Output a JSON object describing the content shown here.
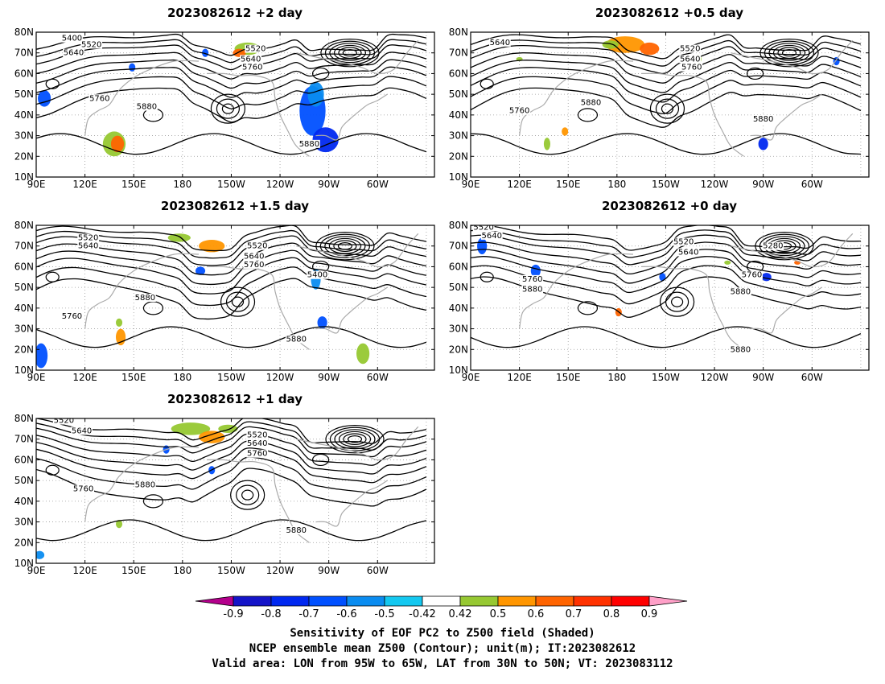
{
  "lon_ticks": [
    "90E",
    "120E",
    "150E",
    "180",
    "150W",
    "120W",
    "90W",
    "60W"
  ],
  "lat_ticks": [
    "10N",
    "20N",
    "30N",
    "40N",
    "50N",
    "60N",
    "70N",
    "80N"
  ],
  "panels": [
    {
      "id": "p2",
      "title": "2023082612 +2 day",
      "contour_labels": [
        {
          "text": "5400",
          "lon": 112,
          "lat": 77
        },
        {
          "text": "5520",
          "lon": 124,
          "lat": 74
        },
        {
          "text": "5640",
          "lon": 113,
          "lat": 70
        },
        {
          "text": "5520",
          "lon": 225,
          "lat": 72
        },
        {
          "text": "5640",
          "lon": 222,
          "lat": 67
        },
        {
          "text": "5760",
          "lon": 223,
          "lat": 63
        },
        {
          "text": "5760",
          "lon": 129,
          "lat": 48
        },
        {
          "text": "5880",
          "lon": 158,
          "lat": 44
        },
        {
          "text": "5880",
          "lon": 258,
          "lat": 26
        }
      ],
      "shading": [
        {
          "lon": 95,
          "lat": 48,
          "rx": 4,
          "ry": 4,
          "level": "-0.6"
        },
        {
          "lon": 138,
          "lat": 26,
          "rx": 7,
          "ry": 6,
          "level": "0.5"
        },
        {
          "lon": 140,
          "lat": 26,
          "rx": 4,
          "ry": 4,
          "level": "0.7"
        },
        {
          "lon": 260,
          "lat": 42,
          "rx": 8,
          "ry": 12,
          "level": "-0.6"
        },
        {
          "lon": 268,
          "lat": 28,
          "rx": 8,
          "ry": 6,
          "level": "-0.7"
        },
        {
          "lon": 262,
          "lat": 50,
          "rx": 5,
          "ry": 6,
          "level": "-0.5"
        },
        {
          "lon": 220,
          "lat": 72,
          "rx": 8,
          "ry": 3,
          "level": "0.5"
        },
        {
          "lon": 215,
          "lat": 70,
          "rx": 4,
          "ry": 2,
          "level": "0.7"
        },
        {
          "lon": 194,
          "lat": 70,
          "rx": 2,
          "ry": 2,
          "level": "-0.6"
        },
        {
          "lon": 149,
          "lat": 63,
          "rx": 2,
          "ry": 2,
          "level": "-0.6"
        }
      ]
    },
    {
      "id": "p05",
      "title": "2023082612 +0.5 day",
      "contour_labels": [
        {
          "text": "5640",
          "lon": 108,
          "lat": 75
        },
        {
          "text": "5520",
          "lon": 225,
          "lat": 72
        },
        {
          "text": "5640",
          "lon": 225,
          "lat": 67
        },
        {
          "text": "5760",
          "lon": 226,
          "lat": 63
        },
        {
          "text": "5760",
          "lon": 120,
          "lat": 42
        },
        {
          "text": "5880",
          "lon": 164,
          "lat": 46
        },
        {
          "text": "5880",
          "lon": 270,
          "lat": 38
        }
      ],
      "shading": [
        {
          "lon": 185,
          "lat": 74,
          "rx": 12,
          "ry": 4,
          "level": "0.6"
        },
        {
          "lon": 200,
          "lat": 72,
          "rx": 6,
          "ry": 3,
          "level": "0.7"
        },
        {
          "lon": 176,
          "lat": 74,
          "rx": 5,
          "ry": 2,
          "level": "0.5"
        },
        {
          "lon": 137,
          "lat": 26,
          "rx": 2,
          "ry": 3,
          "level": "0.5"
        },
        {
          "lon": 148,
          "lat": 32,
          "rx": 2,
          "ry": 2,
          "level": "0.6"
        },
        {
          "lon": 270,
          "lat": 26,
          "rx": 3,
          "ry": 3,
          "level": "-0.7"
        },
        {
          "lon": 315,
          "lat": 66,
          "rx": 2,
          "ry": 2,
          "level": "-0.6"
        },
        {
          "lon": 230,
          "lat": 67,
          "rx": 2,
          "ry": 2,
          "level": "0.5"
        },
        {
          "lon": 120,
          "lat": 67,
          "rx": 2,
          "ry": 1,
          "level": "0.5"
        }
      ]
    },
    {
      "id": "p15",
      "title": "2023082612 +1.5 day",
      "contour_labels": [
        {
          "text": "5520",
          "lon": 122,
          "lat": 74
        },
        {
          "text": "5640",
          "lon": 122,
          "lat": 70
        },
        {
          "text": "5520",
          "lon": 226,
          "lat": 70
        },
        {
          "text": "5640",
          "lon": 224,
          "lat": 65
        },
        {
          "text": "5760",
          "lon": 224,
          "lat": 61
        },
        {
          "text": "5400",
          "lon": 263,
          "lat": 56
        },
        {
          "text": "5880",
          "lon": 157,
          "lat": 45
        },
        {
          "text": "5760",
          "lon": 112,
          "lat": 36
        },
        {
          "text": "5880",
          "lon": 250,
          "lat": 25
        }
      ],
      "shading": [
        {
          "lon": 93,
          "lat": 17,
          "rx": 4,
          "ry": 6,
          "level": "-0.6"
        },
        {
          "lon": 178,
          "lat": 74,
          "rx": 7,
          "ry": 2,
          "level": "0.5"
        },
        {
          "lon": 198,
          "lat": 70,
          "rx": 8,
          "ry": 3,
          "level": "0.6"
        },
        {
          "lon": 191,
          "lat": 58,
          "rx": 3,
          "ry": 2,
          "level": "-0.6"
        },
        {
          "lon": 262,
          "lat": 54,
          "rx": 3,
          "ry": 5,
          "level": "-0.5"
        },
        {
          "lon": 142,
          "lat": 26,
          "rx": 3,
          "ry": 4,
          "level": "0.6"
        },
        {
          "lon": 141,
          "lat": 33,
          "rx": 2,
          "ry": 2,
          "level": "0.5"
        },
        {
          "lon": 291,
          "lat": 18,
          "rx": 4,
          "ry": 5,
          "level": "0.5"
        },
        {
          "lon": 266,
          "lat": 33,
          "rx": 3,
          "ry": 3,
          "level": "-0.6"
        }
      ]
    },
    {
      "id": "p0",
      "title": "2023082612 +0 day",
      "contour_labels": [
        {
          "text": "5520",
          "lon": 98,
          "lat": 79
        },
        {
          "text": "5640",
          "lon": 103,
          "lat": 75
        },
        {
          "text": "5520",
          "lon": 221,
          "lat": 72
        },
        {
          "text": "5640",
          "lon": 224,
          "lat": 67
        },
        {
          "text": "5280",
          "lon": 276,
          "lat": 70
        },
        {
          "text": "5760",
          "lon": 128,
          "lat": 54
        },
        {
          "text": "5880",
          "lon": 128,
          "lat": 49
        },
        {
          "text": "5760",
          "lon": 263,
          "lat": 56
        },
        {
          "text": "5880",
          "lon": 256,
          "lat": 48
        },
        {
          "text": "5880",
          "lon": 256,
          "lat": 20
        }
      ],
      "shading": [
        {
          "lon": 97,
          "lat": 70,
          "rx": 3,
          "ry": 4,
          "level": "-0.6"
        },
        {
          "lon": 130,
          "lat": 58,
          "rx": 3,
          "ry": 3,
          "level": "-0.6"
        },
        {
          "lon": 208,
          "lat": 55,
          "rx": 2,
          "ry": 2,
          "level": "-0.6"
        },
        {
          "lon": 272,
          "lat": 55,
          "rx": 3,
          "ry": 2,
          "level": "-0.7"
        },
        {
          "lon": 291,
          "lat": 62,
          "rx": 2,
          "ry": 1,
          "level": "0.7"
        },
        {
          "lon": 181,
          "lat": 38,
          "rx": 2,
          "ry": 2,
          "level": "0.7"
        },
        {
          "lon": 248,
          "lat": 62,
          "rx": 2,
          "ry": 1,
          "level": "0.5"
        }
      ]
    },
    {
      "id": "p1",
      "title": "2023082612 +1 day",
      "contour_labels": [
        {
          "text": "5520",
          "lon": 107,
          "lat": 79
        },
        {
          "text": "5640",
          "lon": 118,
          "lat": 74
        },
        {
          "text": "5520",
          "lon": 226,
          "lat": 72
        },
        {
          "text": "5640",
          "lon": 226,
          "lat": 68
        },
        {
          "text": "5760",
          "lon": 226,
          "lat": 63
        },
        {
          "text": "5760",
          "lon": 119,
          "lat": 46
        },
        {
          "text": "5880",
          "lon": 157,
          "lat": 48
        },
        {
          "text": "5880",
          "lon": 250,
          "lat": 26
        }
      ],
      "shading": [
        {
          "lon": 185,
          "lat": 75,
          "rx": 12,
          "ry": 3,
          "level": "0.5"
        },
        {
          "lon": 198,
          "lat": 71,
          "rx": 8,
          "ry": 3,
          "level": "0.6"
        },
        {
          "lon": 208,
          "lat": 75,
          "rx": 6,
          "ry": 2,
          "level": "0.5"
        },
        {
          "lon": 141,
          "lat": 29,
          "rx": 2,
          "ry": 2,
          "level": "0.5"
        },
        {
          "lon": 92,
          "lat": 14,
          "rx": 3,
          "ry": 2,
          "level": "-0.5"
        },
        {
          "lon": 198,
          "lat": 55,
          "rx": 2,
          "ry": 2,
          "level": "-0.6"
        },
        {
          "lon": 170,
          "lat": 65,
          "rx": 2,
          "ry": 2,
          "level": "-0.6"
        }
      ]
    }
  ],
  "colorbar": {
    "labels": [
      "-0.9",
      "-0.8",
      "-0.7",
      "-0.6",
      "-0.5",
      "-0.42",
      "0.42",
      "0.5",
      "0.6",
      "0.7",
      "0.8",
      "0.9"
    ],
    "colors": [
      "#b4008c",
      "#1414c8",
      "#0028f0",
      "#0050ff",
      "#0a8cf0",
      "#14c8f0",
      "#ffffff",
      "#96c832",
      "#ff9600",
      "#ff6400",
      "#ff3200",
      "#ff0000",
      "#ffa0c8"
    ]
  },
  "caption": {
    "line1": "Sensitivity of EOF PC2 to Z500 field (Shaded)",
    "line2": "NCEP ensemble mean Z500 (Contour); unit(m); IT:2023082612",
    "line3": "Valid area: LON from 95W to 65W, LAT from 30N to 50N; VT: 2023083112"
  }
}
